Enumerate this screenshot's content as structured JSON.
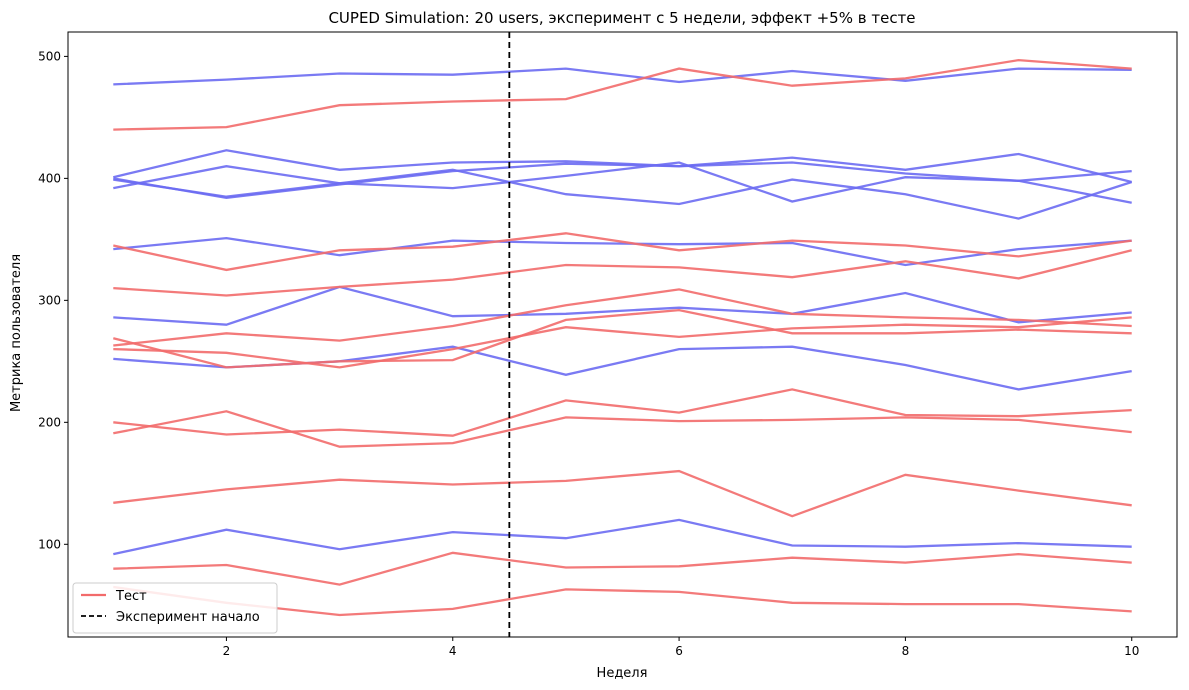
{
  "chart_data": {
    "type": "line",
    "title": "CUPED Simulation: 20 users, эксперимент с 5 недели, эффект +5% в тесте",
    "xlabel": "Неделя",
    "ylabel": "Метрика пользователя",
    "xlim": [
      0.6,
      10.4
    ],
    "ylim": [
      24,
      520
    ],
    "xticks": [
      2,
      4,
      6,
      8,
      10
    ],
    "yticks": [
      100,
      200,
      300,
      400,
      500
    ],
    "grid": false,
    "legend_position": "lower-left",
    "legend": [
      {
        "label": "Тест",
        "style": "solid",
        "color": "#f26b6b"
      },
      {
        "label": "Эксперимент начало",
        "style": "dashed",
        "color": "#000000"
      }
    ],
    "experiment_start_x": 4.5,
    "colors": {
      "test": "#f26b6b",
      "control": "#6b6bf2",
      "marker": "#000000"
    },
    "x": [
      1,
      2,
      3,
      4,
      5,
      6,
      7,
      8,
      9,
      10
    ],
    "series": [
      {
        "group": "control",
        "values": [
          477,
          481,
          486,
          485,
          490,
          479,
          488,
          480,
          490,
          489
        ]
      },
      {
        "group": "control",
        "values": [
          392,
          410,
          396,
          392,
          402,
          413,
          381,
          401,
          398,
          406
        ]
      },
      {
        "group": "control",
        "values": [
          399,
          385,
          396,
          407,
          387,
          379,
          399,
          387,
          367,
          397
        ]
      },
      {
        "group": "control",
        "values": [
          401,
          423,
          407,
          413,
          414,
          410,
          417,
          407,
          420,
          397
        ]
      },
      {
        "group": "control",
        "values": [
          400,
          384,
          395,
          406,
          412,
          410,
          413,
          404,
          398,
          380
        ]
      },
      {
        "group": "control",
        "values": [
          342,
          351,
          337,
          349,
          347,
          346,
          347,
          329,
          342,
          349
        ]
      },
      {
        "group": "control",
        "values": [
          286,
          280,
          311,
          287,
          289,
          294,
          289,
          306,
          282,
          290
        ]
      },
      {
        "group": "control",
        "values": [
          252,
          245,
          250,
          262,
          239,
          260,
          262,
          247,
          227,
          242
        ]
      },
      {
        "group": "control",
        "values": [
          92,
          112,
          96,
          110,
          105,
          120,
          99,
          98,
          101,
          98
        ]
      },
      {
        "group": "test",
        "values": [
          440,
          442,
          460,
          463,
          465,
          490,
          476,
          482,
          497,
          490
        ]
      },
      {
        "group": "test",
        "values": [
          345,
          325,
          341,
          344,
          355,
          341,
          349,
          345,
          336,
          349
        ]
      },
      {
        "group": "test",
        "values": [
          310,
          304,
          311,
          317,
          329,
          327,
          319,
          332,
          318,
          341
        ]
      },
      {
        "group": "test",
        "values": [
          263,
          273,
          267,
          279,
          296,
          309,
          289,
          286,
          284,
          279
        ]
      },
      {
        "group": "test",
        "values": [
          260,
          257,
          245,
          260,
          278,
          270,
          277,
          280,
          278,
          286
        ]
      },
      {
        "group": "test",
        "values": [
          269,
          245,
          250,
          251,
          284,
          292,
          273,
          273,
          276,
          273
        ]
      },
      {
        "group": "test",
        "values": [
          200,
          190,
          194,
          189,
          218,
          208,
          227,
          206,
          205,
          210
        ]
      },
      {
        "group": "test",
        "values": [
          191,
          209,
          180,
          183,
          204,
          201,
          202,
          204,
          202,
          192
        ]
      },
      {
        "group": "test",
        "values": [
          134,
          145,
          153,
          149,
          152,
          160,
          123,
          157,
          144,
          132
        ]
      },
      {
        "group": "test",
        "values": [
          80,
          83,
          67,
          93,
          81,
          82,
          89,
          85,
          92,
          85
        ]
      },
      {
        "group": "test",
        "values": [
          65,
          52,
          42,
          47,
          63,
          61,
          52,
          51,
          51,
          45
        ]
      }
    ]
  }
}
